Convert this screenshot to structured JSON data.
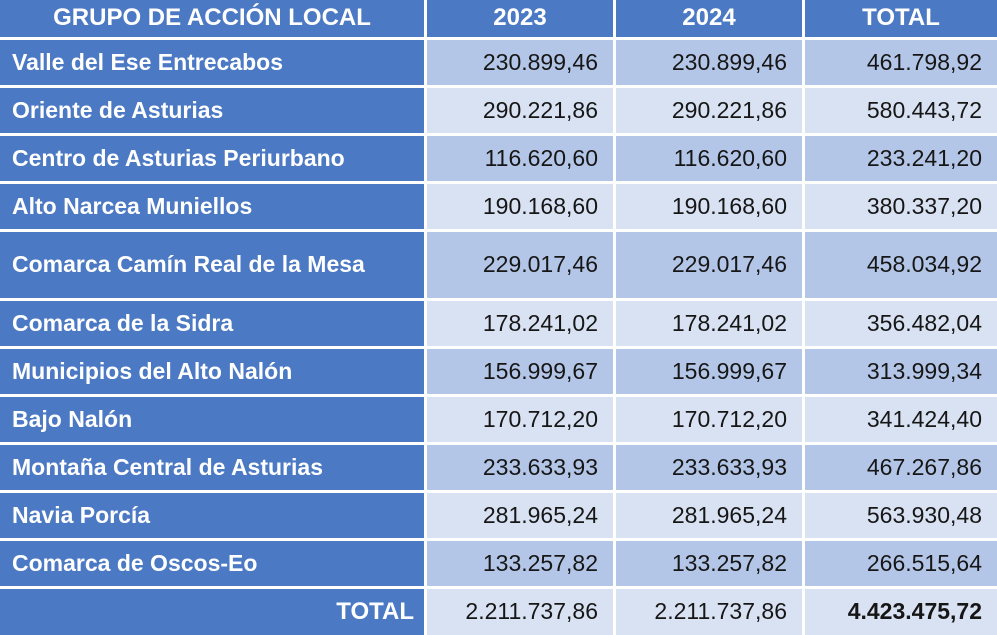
{
  "colors": {
    "header_blue": "#4b79c4",
    "band_dark": "#b4c6e7",
    "band_light": "#d9e2f2",
    "gridline": "#ffffff",
    "header_text": "#ffffff",
    "number_text": "#161616"
  },
  "table": {
    "columns": [
      "GRUPO DE ACCIÓN LOCAL",
      "2023",
      "2024",
      "TOTAL"
    ],
    "rows": [
      {
        "name": "Valle del Ese Entrecabos",
        "y2023": "230.899,46",
        "y2024": "230.899,46",
        "total": "461.798,92"
      },
      {
        "name": "Oriente de Asturias",
        "y2023": "290.221,86",
        "y2024": "290.221,86",
        "total": "580.443,72"
      },
      {
        "name": "Centro de Asturias Periurbano",
        "y2023": "116.620,60",
        "y2024": "116.620,60",
        "total": "233.241,20"
      },
      {
        "name": "Alto Narcea Muniellos",
        "y2023": "190.168,60",
        "y2024": "190.168,60",
        "total": "380.337,20"
      },
      {
        "name": "Comarca Camín Real de la Mesa",
        "y2023": "229.017,46",
        "y2024": "229.017,46",
        "total": "458.034,92"
      },
      {
        "name": "Comarca de la Sidra",
        "y2023": "178.241,02",
        "y2024": "178.241,02",
        "total": "356.482,04"
      },
      {
        "name": "Municipios del Alto Nalón",
        "y2023": "156.999,67",
        "y2024": "156.999,67",
        "total": "313.999,34"
      },
      {
        "name": "Bajo Nalón",
        "y2023": "170.712,20",
        "y2024": "170.712,20",
        "total": "341.424,40"
      },
      {
        "name": "Montaña Central de Asturias",
        "y2023": "233.633,93",
        "y2024": "233.633,93",
        "total": "467.267,86"
      },
      {
        "name": "Navia Porcía",
        "y2023": "281.965,24",
        "y2024": "281.965,24",
        "total": "563.930,48"
      },
      {
        "name": "Comarca de Oscos-Eo",
        "y2023": "133.257,82",
        "y2024": "133.257,82",
        "total": "266.515,64"
      }
    ],
    "footer": {
      "label": "TOTAL",
      "y2023": "2.211.737,86",
      "y2024": "2.211.737,86",
      "total": "4.423.475,72"
    }
  },
  "chart_data": {
    "type": "table",
    "title": "GRUPO DE ACCIÓN LOCAL",
    "columns": [
      "GRUPO DE ACCIÓN LOCAL",
      "2023",
      "2024",
      "TOTAL"
    ],
    "number_format": "es-ES (thousands '.', decimals ',')",
    "rows": [
      {
        "group": "Valle del Ese Entrecabos",
        "y2023": 230899.46,
        "y2024": 230899.46,
        "total": 461798.92
      },
      {
        "group": "Oriente de Asturias",
        "y2023": 290221.86,
        "y2024": 290221.86,
        "total": 580443.72
      },
      {
        "group": "Centro de Asturias Periurbano",
        "y2023": 116620.6,
        "y2024": 116620.6,
        "total": 233241.2
      },
      {
        "group": "Alto Narcea Muniellos",
        "y2023": 190168.6,
        "y2024": 190168.6,
        "total": 380337.2
      },
      {
        "group": "Comarca Camín Real de la Mesa",
        "y2023": 229017.46,
        "y2024": 229017.46,
        "total": 458034.92
      },
      {
        "group": "Comarca de la Sidra",
        "y2023": 178241.02,
        "y2024": 178241.02,
        "total": 356482.04
      },
      {
        "group": "Municipios del Alto Nalón",
        "y2023": 156999.67,
        "y2024": 156999.67,
        "total": 313999.34
      },
      {
        "group": "Bajo Nalón",
        "y2023": 170712.2,
        "y2024": 170712.2,
        "total": 341424.4
      },
      {
        "group": "Montaña Central de Asturias",
        "y2023": 233633.93,
        "y2024": 233633.93,
        "total": 467267.86
      },
      {
        "group": "Navia Porcía",
        "y2023": 281965.24,
        "y2024": 281965.24,
        "total": 563930.48
      },
      {
        "group": "Comarca de Oscos-Eo",
        "y2023": 133257.82,
        "y2024": 133257.82,
        "total": 266515.64
      }
    ],
    "footer_totals": {
      "y2023": 2211737.86,
      "y2024": 2211737.86,
      "total": 4423475.72
    }
  }
}
